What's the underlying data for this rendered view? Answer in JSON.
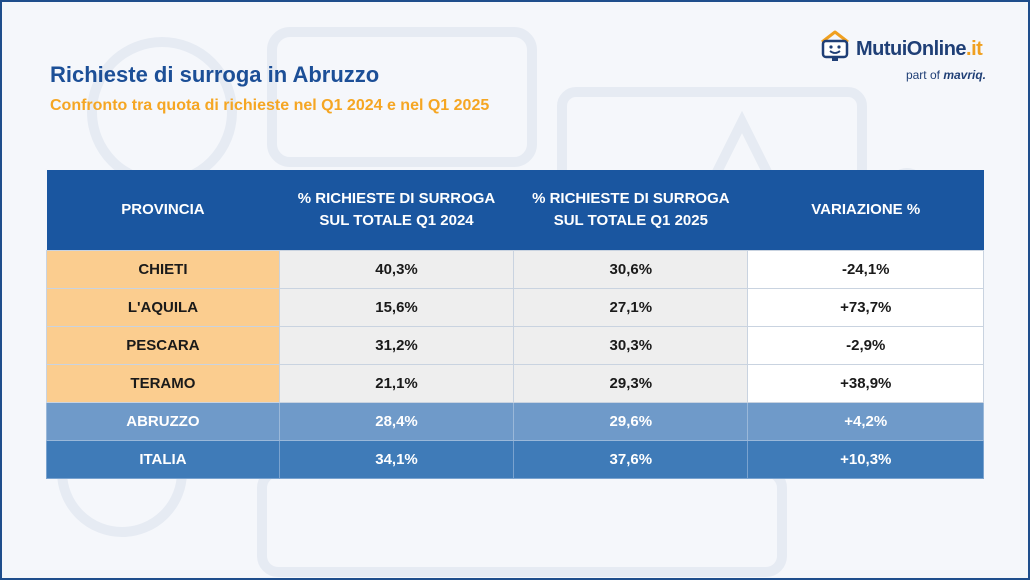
{
  "header": {
    "title": "Richieste di surroga in Abruzzo",
    "subtitle": "Confronto tra quota di richieste nel Q1 2024 e nel Q1 2025"
  },
  "logo": {
    "name_main": "MutuiOnline",
    "name_suffix": ".it",
    "tagline_prefix": "part of",
    "tagline_brand": "mavriq."
  },
  "table": {
    "headers": [
      [
        "PROVINCIA"
      ],
      [
        "% RICHIESTE DI SURROGA",
        "SUL TOTALE Q1 2024"
      ],
      [
        "% RICHIESTE DI SURROGA",
        "SUL TOTALE Q1 2025"
      ],
      [
        "VARIAZIONE %"
      ]
    ],
    "rows": [
      [
        "CHIETI",
        "40,3%",
        "30,6%",
        "-24,1%"
      ],
      [
        "L'AQUILA",
        "15,6%",
        "27,1%",
        "+73,7%"
      ],
      [
        "PESCARA",
        "31,2%",
        "30,3%",
        "-2,9%"
      ],
      [
        "TERAMO",
        "21,1%",
        "29,3%",
        "+38,9%"
      ],
      [
        "ABRUZZO",
        "28,4%",
        "29,6%",
        "+4,2%"
      ],
      [
        "ITALIA",
        "34,1%",
        "37,6%",
        "+10,3%"
      ]
    ]
  },
  "colors": {
    "header_bg": "#1a56a0",
    "province_bg": "#fbcd8f",
    "abruzzo_bg": "#6f9ac9",
    "italia_bg": "#3f7bb8",
    "title": "#1c4f97",
    "subtitle": "#f5a623"
  }
}
